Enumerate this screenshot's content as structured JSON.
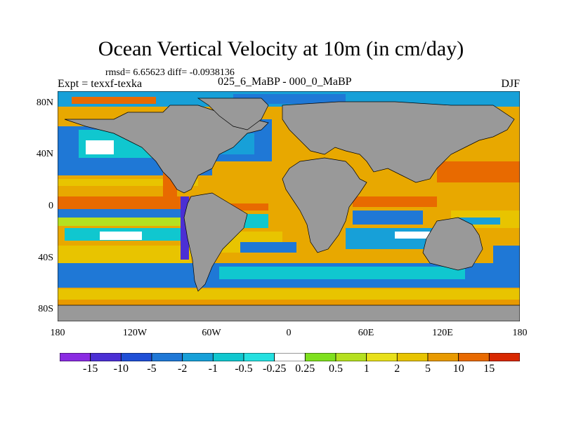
{
  "title": "Ocean Vertical Velocity at 10m (in cm/day)",
  "stats": {
    "rmsd_label": "rmsd=",
    "rmsd": "6.65623",
    "diff_label": "diff=",
    "diff": "-0.0938136"
  },
  "experiment": "Expt = texxf-texka",
  "experiment_diff": "025_6_MaBP - 000_0_MaBP",
  "season": "DJF",
  "map": {
    "projection": "cylindrical equidistant",
    "lon_range": [
      -180,
      180
    ],
    "lat_range": [
      -90,
      90
    ],
    "y_ticks": [
      {
        "value": 80,
        "label": "80N"
      },
      {
        "value": 40,
        "label": "40N"
      },
      {
        "value": 0,
        "label": "0"
      },
      {
        "value": -40,
        "label": "40S"
      },
      {
        "value": -80,
        "label": "80S"
      }
    ],
    "x_ticks": [
      {
        "value": -180,
        "label": "180"
      },
      {
        "value": -120,
        "label": "120W"
      },
      {
        "value": -60,
        "label": "60W"
      },
      {
        "value": 0,
        "label": "0"
      },
      {
        "value": 60,
        "label": "60E"
      },
      {
        "value": 120,
        "label": "120E"
      },
      {
        "value": 180,
        "label": "180"
      }
    ],
    "land_color": "#999999",
    "ocean_base_color": "#e8a800"
  },
  "colorbar": {
    "colors": [
      "#8a2be2",
      "#4b2fd4",
      "#1f4fd6",
      "#1f78d6",
      "#17a0d8",
      "#10c7cf",
      "#25e0e0",
      "#ffffff",
      "#7fe01e",
      "#b5e020",
      "#e8e01a",
      "#e8c400",
      "#e89a00",
      "#e86a00",
      "#d82800"
    ],
    "labels": [
      "-15",
      "-10",
      "-5",
      "-2",
      "-1",
      "-0.5",
      "-0.25",
      "0.25",
      "0.5",
      "1",
      "2",
      "5",
      "10",
      "15"
    ]
  }
}
